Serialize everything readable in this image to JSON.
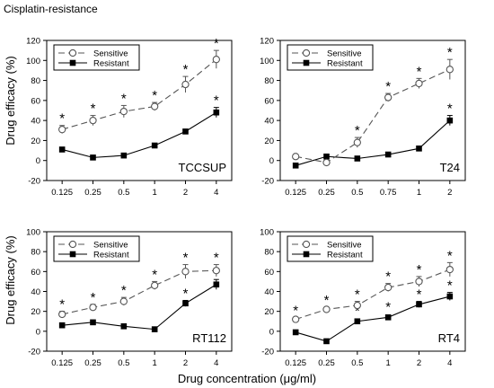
{
  "figure_title": "Cisplatin-resistance",
  "shared_ylabel": "Drug efficacy (%)",
  "shared_xlabel": "Drug concentration (μg/ml)",
  "colors": {
    "axis": "#000000",
    "sensitive": "#555555",
    "resistant": "#000000"
  },
  "chart_data": [
    {
      "type": "line",
      "title": "TCCSUP",
      "categories": [
        "0.125",
        "0.25",
        "0.5",
        "1",
        "2",
        "4"
      ],
      "ylim": [
        -20,
        120
      ],
      "yticks": [
        -20,
        0,
        20,
        40,
        60,
        80,
        100,
        120
      ],
      "legend_position": "top-left",
      "series": [
        {
          "name": "Sensitive",
          "marker": "open-circle",
          "line": "dashed",
          "values": [
            31,
            40,
            49,
            54,
            76,
            101
          ],
          "errors": [
            4,
            5,
            6,
            4,
            8,
            9
          ],
          "significance": [
            "*",
            "*",
            "*",
            "*",
            "*",
            "*"
          ]
        },
        {
          "name": "Resistant",
          "marker": "filled-square",
          "line": "solid",
          "values": [
            11,
            3,
            5,
            15,
            29,
            48
          ],
          "errors": [
            0,
            0,
            0,
            0,
            0,
            5
          ],
          "significance": [
            "",
            "",
            "",
            "",
            "",
            "*"
          ]
        }
      ]
    },
    {
      "type": "line",
      "title": "T24",
      "categories": [
        "0.125",
        "0.25",
        "0.5",
        "0.75",
        "1",
        "2"
      ],
      "ylim": [
        -20,
        120
      ],
      "yticks": [
        -20,
        0,
        20,
        40,
        60,
        80,
        100,
        120
      ],
      "legend_position": "top-left",
      "series": [
        {
          "name": "Sensitive",
          "marker": "open-circle",
          "line": "dashed",
          "values": [
            4,
            -2,
            18,
            63,
            77,
            91
          ],
          "errors": [
            0,
            0,
            5,
            4,
            5,
            10
          ],
          "significance": [
            "",
            "",
            "*",
            "*",
            "*",
            "*"
          ]
        },
        {
          "name": "Resistant",
          "marker": "filled-square",
          "line": "solid",
          "values": [
            -5,
            4,
            2,
            6,
            12,
            40
          ],
          "errors": [
            0,
            0,
            0,
            0,
            0,
            5
          ],
          "significance": [
            "",
            "",
            "",
            "",
            "",
            "*"
          ]
        }
      ]
    },
    {
      "type": "line",
      "title": "RT112",
      "categories": [
        "0.125",
        "0.25",
        "0.5",
        "1",
        "2",
        "4"
      ],
      "ylim": [
        -20,
        100
      ],
      "yticks": [
        -20,
        0,
        20,
        40,
        60,
        80,
        100
      ],
      "legend_position": "top-left",
      "series": [
        {
          "name": "Sensitive",
          "marker": "open-circle",
          "line": "dashed",
          "values": [
            17,
            24,
            30,
            46,
            60,
            61
          ],
          "errors": [
            3,
            3,
            4,
            4,
            7,
            6
          ],
          "significance": [
            "*",
            "*",
            "*",
            "*",
            "*",
            "*"
          ]
        },
        {
          "name": "Resistant",
          "marker": "filled-square",
          "line": "solid",
          "values": [
            6,
            9,
            5,
            2,
            28,
            47
          ],
          "errors": [
            0,
            0,
            0,
            0,
            3,
            5
          ],
          "significance": [
            "",
            "",
            "",
            "",
            "*",
            "*"
          ]
        }
      ]
    },
    {
      "type": "line",
      "title": "RT4",
      "categories": [
        "0.125",
        "0.25",
        "0.5",
        "1",
        "2",
        "4"
      ],
      "ylim": [
        -20,
        100
      ],
      "yticks": [
        -20,
        0,
        20,
        40,
        60,
        80,
        100
      ],
      "legend_position": "top-left",
      "series": [
        {
          "name": "Sensitive",
          "marker": "open-circle",
          "line": "dashed",
          "values": [
            12,
            22,
            26,
            44,
            50,
            62
          ],
          "errors": [
            2,
            2,
            4,
            4,
            5,
            7
          ],
          "significance": [
            "*",
            "*",
            "*",
            "*",
            "*",
            "*"
          ]
        },
        {
          "name": "Resistant",
          "marker": "filled-square",
          "line": "solid",
          "values": [
            -1,
            -10,
            10,
            14,
            27,
            35
          ],
          "errors": [
            0,
            0,
            0,
            0,
            3,
            4
          ],
          "significance": [
            "",
            "",
            "*",
            "*",
            "*",
            "*"
          ]
        }
      ]
    }
  ]
}
